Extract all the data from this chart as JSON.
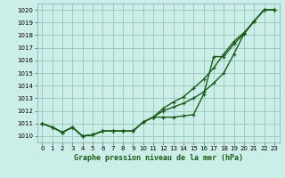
{
  "title": "Graphe pression niveau de la mer (hPa)",
  "background_color": "#cceee8",
  "grid_color": "#99ccbb",
  "line_color": "#1a5c1a",
  "x_values": [
    0,
    1,
    2,
    3,
    4,
    5,
    6,
    7,
    8,
    9,
    10,
    11,
    12,
    13,
    14,
    15,
    16,
    17,
    18,
    19,
    20,
    21,
    22,
    23
  ],
  "line1": [
    1011.0,
    1010.7,
    1010.3,
    1010.7,
    1010.0,
    1010.1,
    1010.4,
    1010.4,
    1010.4,
    1010.4,
    1011.1,
    1011.5,
    1011.5,
    1011.5,
    1011.6,
    1011.7,
    1013.3,
    1016.3,
    1016.3,
    1017.3,
    1018.1,
    1019.1,
    1020.0,
    1020.0
  ],
  "line2": [
    1011.0,
    1010.7,
    1010.3,
    1010.7,
    1010.0,
    1010.1,
    1010.4,
    1010.4,
    1010.4,
    1010.4,
    1011.1,
    1011.5,
    1012.0,
    1012.3,
    1012.6,
    1013.0,
    1013.5,
    1014.2,
    1015.0,
    1016.5,
    1018.1,
    1019.1,
    1020.0,
    1020.0
  ],
  "line3": [
    1011.0,
    1010.7,
    1010.3,
    1010.7,
    1010.0,
    1010.1,
    1010.4,
    1010.4,
    1010.4,
    1010.4,
    1011.1,
    1011.5,
    1012.2,
    1012.7,
    1013.1,
    1013.8,
    1014.5,
    1015.4,
    1016.5,
    1017.5,
    1018.2,
    1019.1,
    1020.0,
    1020.0
  ],
  "ylim": [
    1009.5,
    1020.5
  ],
  "yticks": [
    1010,
    1011,
    1012,
    1013,
    1014,
    1015,
    1016,
    1017,
    1018,
    1019,
    1020
  ],
  "xlim": [
    -0.5,
    23.5
  ],
  "xticks": [
    0,
    1,
    2,
    3,
    4,
    5,
    6,
    7,
    8,
    9,
    10,
    11,
    12,
    13,
    14,
    15,
    16,
    17,
    18,
    19,
    20,
    21,
    22,
    23
  ]
}
